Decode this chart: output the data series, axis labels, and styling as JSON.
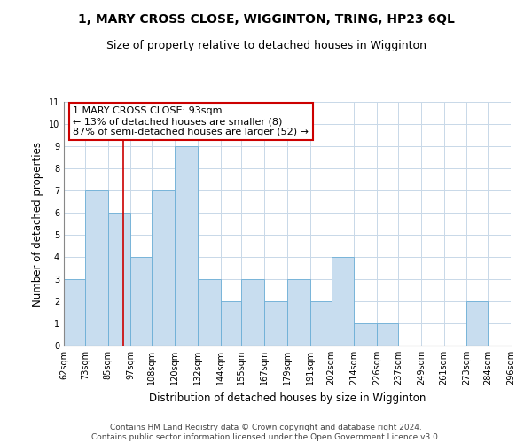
{
  "title": "1, MARY CROSS CLOSE, WIGGINTON, TRING, HP23 6QL",
  "subtitle": "Size of property relative to detached houses in Wigginton",
  "xlabel": "Distribution of detached houses by size in Wigginton",
  "ylabel": "Number of detached properties",
  "bar_edges": [
    62,
    73,
    85,
    97,
    108,
    120,
    132,
    144,
    155,
    167,
    179,
    191,
    202,
    214,
    226,
    237,
    249,
    261,
    273,
    284,
    296
  ],
  "bar_heights": [
    3,
    7,
    6,
    4,
    7,
    9,
    3,
    2,
    3,
    2,
    3,
    2,
    4,
    1,
    1,
    0,
    0,
    0,
    2,
    0
  ],
  "tick_labels": [
    "62sqm",
    "73sqm",
    "85sqm",
    "97sqm",
    "108sqm",
    "120sqm",
    "132sqm",
    "144sqm",
    "155sqm",
    "167sqm",
    "179sqm",
    "191sqm",
    "202sqm",
    "214sqm",
    "226sqm",
    "237sqm",
    "249sqm",
    "261sqm",
    "273sqm",
    "284sqm",
    "296sqm"
  ],
  "bar_color": "#c8ddef",
  "bar_edge_color": "#6baed6",
  "property_line_x": 93,
  "property_line_color": "#cc0000",
  "annotation_box_text": "1 MARY CROSS CLOSE: 93sqm\n← 13% of detached houses are smaller (8)\n87% of semi-detached houses are larger (52) →",
  "ylim": [
    0,
    11
  ],
  "yticks": [
    0,
    1,
    2,
    3,
    4,
    5,
    6,
    7,
    8,
    9,
    10,
    11
  ],
  "grid_color": "#c8d8e8",
  "background_color": "#ffffff",
  "footer_text": "Contains HM Land Registry data © Crown copyright and database right 2024.\nContains public sector information licensed under the Open Government Licence v3.0.",
  "title_fontsize": 10,
  "subtitle_fontsize": 9,
  "annotation_fontsize": 8,
  "axis_label_fontsize": 8.5,
  "tick_fontsize": 7,
  "footer_fontsize": 6.5,
  "figsize": [
    6.0,
    5.0
  ],
  "dpi": 100
}
